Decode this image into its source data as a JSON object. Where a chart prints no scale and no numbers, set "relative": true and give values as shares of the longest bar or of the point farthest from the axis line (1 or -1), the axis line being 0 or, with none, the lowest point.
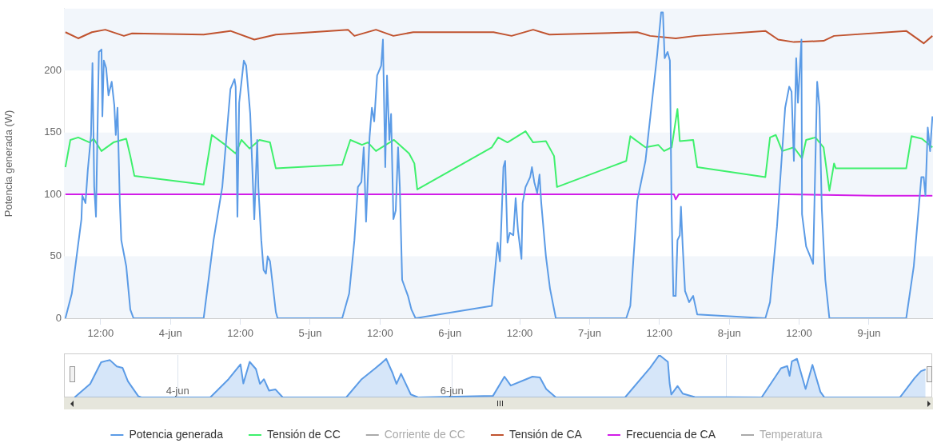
{
  "chart_data": [
    {
      "type": "line",
      "ylabel": "Potencia generada (W)",
      "xlim": [
        "--06-03T05:42",
        "--06-09T11:00"
      ],
      "ylim": [
        0,
        250
      ],
      "xticks": [
        {
          "value": "--06-03T12:00",
          "label": "12:00"
        },
        {
          "value": "--06-04",
          "label": "4-jun"
        },
        {
          "value": "--06-04T12:00",
          "label": "12:00"
        },
        {
          "value": "--06-05",
          "label": "5-jun"
        },
        {
          "value": "--06-05T12:00",
          "label": "12:00"
        },
        {
          "value": "--06-06",
          "label": "6-jun"
        },
        {
          "value": "--06-06T12:00",
          "label": "12:00"
        },
        {
          "value": "--06-07",
          "label": "7-jun"
        },
        {
          "value": "--06-07T12:00",
          "label": "12:00"
        },
        {
          "value": "--06-08",
          "label": "8-jun"
        },
        {
          "value": "--06-08T12:00",
          "label": "12:00"
        },
        {
          "value": "--06-09",
          "label": "9-jun"
        }
      ],
      "yticks": [
        0,
        50,
        100,
        150,
        200
      ],
      "grid": false,
      "legend": "bottom",
      "marker": "none",
      "line_style": "solid",
      "bands": [
        {
          "axis": "y",
          "from": 0,
          "to": 50,
          "color": "#f2f6fb"
        },
        {
          "axis": "y",
          "from": 100,
          "to": 150,
          "color": "#f2f6fb"
        },
        {
          "axis": "y",
          "from": 200,
          "to": 250,
          "color": "#f2f6fb"
        }
      ],
      "series": [
        {
          "name": "Potencia generada",
          "color": "#5b9be6",
          "x": [
            "--06-03T05:57",
            "--06-03T07:03",
            "--06-03T08:42",
            "--06-03T08:51",
            "--06-03T09:24",
            "--06-03T09:48",
            "--06-03T10:06",
            "--06-03T10:21",
            "--06-03T10:36",
            "--06-03T10:54",
            "--06-03T11:12",
            "--06-03T11:27",
            "--06-03T11:42",
            "--06-03T12:09",
            "--06-03T12:18",
            "--06-03T12:33",
            "--06-03T12:57",
            "--06-03T13:21",
            "--06-03T13:54",
            "--06-03T14:21",
            "--06-03T14:36",
            "--06-03T14:54",
            "--06-03T15:18",
            "--06-03T15:33",
            "--06-03T16:24",
            "--06-03T17:06",
            "--06-03T17:39",
            "--06-04T05:42",
            "--06-04T07:24",
            "--06-04T08:54",
            "--06-04T10:18",
            "--06-04T11:00",
            "--06-04T11:12",
            "--06-04T11:30",
            "--06-04T11:48",
            "--06-04T12:36",
            "--06-04T13:00",
            "--06-04T13:42",
            "--06-04T14:24",
            "--06-04T14:54",
            "--06-04T15:06",
            "--06-04T15:36",
            "--06-04T16:00",
            "--06-04T16:24",
            "--06-04T16:42",
            "--06-04T17:06",
            "--06-04T18:06",
            "--06-04T18:24",
            "--06-05T05:30",
            "--06-05T06:42",
            "--06-05T07:36",
            "--06-05T08:12",
            "--06-05T08:48",
            "--06-05T09:12",
            "--06-05T09:36",
            "--06-05T10:12",
            "--06-05T10:36",
            "--06-05T11:00",
            "--06-05T11:30",
            "--06-05T12:12",
            "--06-05T12:30",
            "--06-05T12:54",
            "--06-05T13:12",
            "--06-05T13:36",
            "--06-05T13:54",
            "--06-05T14:18",
            "--06-05T14:42",
            "--06-05T15:06",
            "--06-05T15:24",
            "--06-05T15:48",
            "--06-05T16:48",
            "--06-05T17:24",
            "--06-05T18:06",
            "--06-06T07:12",
            "--06-06T08:12",
            "--06-06T08:36",
            "--06-06T09:12",
            "--06-06T09:30",
            "--06-06T09:54",
            "--06-06T10:18",
            "--06-06T10:54",
            "--06-06T11:18",
            "--06-06T11:42",
            "--06-06T12:18",
            "--06-06T12:30",
            "--06-06T13:00",
            "--06-06T13:48",
            "--06-06T14:06",
            "--06-06T14:30",
            "--06-06T15:00",
            "--06-06T15:24",
            "--06-06T15:42",
            "--06-06T16:30",
            "--06-06T17:12",
            "--06-06T18:12",
            "--06-07T06:18",
            "--06-07T07:00",
            "--06-07T08:12",
            "--06-07T09:36",
            "--06-07T10:42",
            "--06-07T11:36",
            "--06-07T12:18",
            "--06-07T12:36",
            "--06-07T12:54",
            "--06-07T13:24",
            "--06-07T13:48",
            "--06-07T14:06",
            "--06-07T14:24",
            "--06-07T14:48",
            "--06-07T15:06",
            "--06-07T15:30",
            "--06-07T15:42",
            "--06-07T16:00",
            "--06-07T16:24",
            "--06-07T17:06",
            "--06-07T17:48",
            "--06-07T18:30",
            "--06-08T06:12",
            "--06-08T07:00",
            "--06-08T08:12",
            "--06-08T09:36",
            "--06-08T10:18",
            "--06-08T10:42",
            "--06-08T11:06",
            "--06-08T11:30",
            "--06-08T11:48",
            "--06-08T12:24",
            "--06-08T12:30",
            "--06-08T13:12",
            "--06-08T13:54",
            "--06-08T14:24",
            "--06-08T15:06",
            "--06-08T15:30",
            "--06-08T15:54",
            "--06-08T16:30",
            "--06-08T17:12",
            "--06-09T06:24",
            "--06-09T07:42",
            "--06-09T09:00",
            "--06-09T09:24",
            "--06-09T09:42",
            "--06-09T10:06",
            "--06-09T10:30",
            "--06-09T10:54"
          ],
          "values": [
            0,
            20,
            80,
            99,
            93,
            120,
            135,
            148,
            206,
            106,
            82,
            148,
            215,
            217,
            163,
            208,
            202,
            180,
            191,
            172,
            148,
            170,
            93,
            63,
            42,
            7,
            0,
            0,
            63,
            106,
            185,
            193,
            187,
            82,
            174,
            208,
            204,
            165,
            80,
            144,
            106,
            63,
            39,
            36,
            50,
            46,
            5,
            0,
            0,
            20,
            63,
            106,
            110,
            138,
            78,
            146,
            170,
            159,
            196,
            204,
            225,
            122,
            196,
            144,
            165,
            80,
            87,
            138,
            106,
            31,
            18,
            7,
            0,
            10,
            61,
            46,
            122,
            127,
            61,
            69,
            67,
            97,
            71,
            48,
            93,
            106,
            114,
            122,
            110,
            101,
            116,
            93,
            50,
            24,
            0,
            0,
            10,
            95,
            127,
            174,
            212,
            247,
            247,
            210,
            215,
            208,
            84,
            18,
            18,
            63,
            67,
            90,
            58,
            22,
            13,
            18,
            3,
            0,
            13,
            74,
            170,
            187,
            183,
            127,
            210,
            174,
            225,
            84,
            58,
            50,
            44,
            191,
            170,
            88,
            31,
            0,
            0,
            42,
            114,
            114,
            99,
            154,
            135,
            163
          ]
        },
        {
          "name": "Tensión de CC",
          "color": "#3ef06c",
          "x": [
            "--06-03T05:57",
            "--06-03T06:48",
            "--06-03T08:09",
            "--06-03T10:06",
            "--06-03T10:48",
            "--06-03T12:09",
            "--06-03T14:12",
            "--06-03T16:24",
            "--06-03T17:06",
            "--06-03T17:48",
            "--06-04T05:42",
            "--06-04T07:06",
            "--06-04T09:24",
            "--06-04T11:12",
            "--06-04T12:12",
            "--06-04T13:36",
            "--06-04T15:18",
            "--06-04T17:06",
            "--06-04T18:06",
            "--06-05T05:30",
            "--06-05T06:54",
            "--06-05T08:54",
            "--06-05T09:54",
            "--06-05T11:18",
            "--06-05T13:00",
            "--06-05T14:24",
            "--06-05T17:00",
            "--06-05T17:54",
            "--06-05T18:24",
            "--06-06T07:12",
            "--06-06T08:18",
            "--06-06T09:54",
            "--06-06T13:00",
            "--06-06T14:18",
            "--06-06T16:30",
            "--06-06T17:54",
            "--06-06T18:24",
            "--06-07T06:18",
            "--06-07T07:00",
            "--06-07T09:36",
            "--06-07T11:48",
            "--06-07T12:48",
            "--06-07T14:06",
            "--06-07T15:06",
            "--06-07T15:30",
            "--06-07T17:48",
            "--06-07T18:30",
            "--06-08T06:12",
            "--06-08T07:00",
            "--06-08T08:00",
            "--06-08T09:06",
            "--06-08T11:06",
            "--06-08T12:30",
            "--06-08T13:12",
            "--06-08T14:48",
            "--06-08T16:12",
            "--06-08T17:12",
            "--06-08T18:00",
            "--06-08T18:18",
            "--06-09T06:24",
            "--06-09T07:18",
            "--06-09T09:06",
            "--06-09T10:54"
          ],
          "values": [
            122,
            144,
            146,
            142,
            145,
            135,
            142,
            145,
            131,
            115,
            108,
            148,
            140,
            133,
            144,
            137,
            144,
            142,
            121,
            124,
            144,
            140,
            142,
            135,
            140,
            144,
            133,
            125,
            104,
            138,
            146,
            142,
            151,
            142,
            143,
            131,
            106,
            127,
            147,
            138,
            140,
            135,
            138,
            169,
            143,
            144,
            122,
            114,
            146,
            148,
            135,
            138,
            129,
            144,
            146,
            138,
            103,
            125,
            121,
            121,
            147,
            145,
            138
          ]
        },
        {
          "name": "Corriente de CC",
          "color": "#aaaaaa"
        },
        {
          "name": "Tensión de CA",
          "color": "#c0532f",
          "x": [
            "--06-03T05:57",
            "--06-03T08:09",
            "--06-03T10:30",
            "--06-03T12:48",
            "--06-03T16:00",
            "--06-03T17:24",
            "--06-04T05:42",
            "--06-04T10:18",
            "--06-04T14:24",
            "--06-04T18:06",
            "--06-05T06:30",
            "--06-05T07:36",
            "--06-05T11:18",
            "--06-05T14:18",
            "--06-05T17:42",
            "--06-06T07:30",
            "--06-06T10:36",
            "--06-06T14:18",
            "--06-06T17:06",
            "--06-07T08:12",
            "--06-07T10:24",
            "--06-07T14:48",
            "--06-07T18:12",
            "--06-08T06:12",
            "--06-08T08:24",
            "--06-08T11:06",
            "--06-08T16:12",
            "--06-08T18:00",
            "--06-09T06:24",
            "--06-09T09:24",
            "--06-09T10:54"
          ],
          "values": [
            231,
            226,
            231,
            233,
            228,
            230,
            229,
            232,
            225,
            229,
            233,
            228,
            233,
            228,
            231,
            231,
            228,
            233,
            229,
            231,
            228,
            226,
            228,
            232,
            225,
            223,
            224,
            228,
            232,
            222,
            228
          ]
        },
        {
          "name": "Frecuencia de CA",
          "color": "#d21de8",
          "x": [
            "--06-03T05:57",
            "--06-04T18:00",
            "--06-05T08:00",
            "--06-06T08:00",
            "--06-07T14:30",
            "--06-07T14:48",
            "--06-07T15:18",
            "--06-08T10:00",
            "--06-09T01:00",
            "--06-09T10:54"
          ],
          "values": [
            100,
            100,
            100,
            100,
            100,
            96,
            100,
            100,
            99,
            99
          ]
        },
        {
          "name": "Temperatura",
          "color": "#aaaaaa"
        }
      ]
    },
    {
      "type": "area",
      "relative": true,
      "xlim": [
        "--06-03T04:06",
        "--06-09T12:12"
      ],
      "xticks": [
        {
          "value": "--06-04",
          "label": "4-jun"
        },
        {
          "value": "--06-06",
          "label": "6-jun"
        },
        {
          "value": "--06-08",
          "label": null
        }
      ],
      "grid": "x",
      "series": [
        {
          "color": "#5b9be6",
          "x": [
            "--06-03T05:57",
            "--06-03T08:42",
            "--06-03T10:36",
            "--06-03T11:42",
            "--06-03T12:09",
            "--06-03T13:21",
            "--06-03T14:21",
            "--06-03T15:18",
            "--06-03T17:06",
            "--06-03T17:39",
            "--06-04T05:42",
            "--06-04T08:54",
            "--06-04T11:00",
            "--06-04T11:30",
            "--06-04T12:36",
            "--06-04T13:42",
            "--06-04T14:24",
            "--06-04T15:06",
            "--06-04T16:00",
            "--06-04T17:06",
            "--06-04T18:24",
            "--06-05T05:30",
            "--06-05T08:12",
            "--06-05T10:36",
            "--06-05T11:30",
            "--06-05T12:30",
            "--06-05T13:36",
            "--06-05T14:18",
            "--06-05T15:06",
            "--06-05T16:48",
            "--06-05T18:06",
            "--06-06T07:12",
            "--06-06T09:12",
            "--06-06T10:18",
            "--06-06T13:00",
            "--06-06T14:06",
            "--06-06T15:24",
            "--06-06T16:30",
            "--06-06T18:12",
            "--06-07T06:18",
            "--06-07T10:42",
            "--06-07T12:18",
            "--06-07T13:48",
            "--06-07T14:06",
            "--06-07T14:24",
            "--06-07T15:30",
            "--06-07T16:24",
            "--06-07T18:30",
            "--06-08T06:12",
            "--06-08T09:36",
            "--06-08T10:42",
            "--06-08T11:06",
            "--06-08T11:30",
            "--06-08T12:24",
            "--06-08T13:54",
            "--06-08T15:06",
            "--06-08T16:30",
            "--06-08T17:12",
            "--06-09T06:24",
            "--06-09T09:00",
            "--06-09T10:06",
            "--06-09T10:54"
          ],
          "values": [
            0,
            0.32,
            0.83,
            0.87,
            0.88,
            0.73,
            0.7,
            0.38,
            0.03,
            0,
            0,
            0.43,
            0.78,
            0.33,
            0.84,
            0.67,
            0.32,
            0.43,
            0.16,
            0.19,
            0,
            0,
            0.43,
            0.69,
            0.79,
            0.91,
            0.58,
            0.32,
            0.56,
            0.07,
            0,
            0.04,
            0.49,
            0.28,
            0.43,
            0.49,
            0.47,
            0.2,
            0,
            0,
            0.7,
            1,
            0.84,
            0.34,
            0.07,
            0.27,
            0.09,
            0.01,
            0,
            0.69,
            0.74,
            0.51,
            0.85,
            0.91,
            0.2,
            0.77,
            0.13,
            0,
            0,
            0.46,
            0.62,
            0.66
          ]
        }
      ]
    }
  ]
}
